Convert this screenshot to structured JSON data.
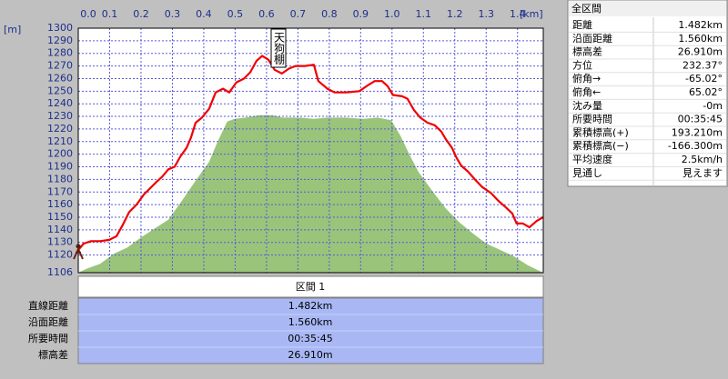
{
  "chart_data": {
    "type": "line",
    "y_label": "[m]",
    "x_label": "[km]",
    "annotation": "天狗棚",
    "xlim": [
      0,
      1.482
    ],
    "ylim": [
      1106,
      1300
    ],
    "xticks": [
      {
        "value": 0,
        "label": "0.0"
      },
      0.1,
      0.2,
      0.3,
      0.4,
      0.5,
      0.6,
      0.7,
      0.8,
      0.9,
      {
        "value": 1,
        "label": "1.0"
      },
      1.1,
      1.2,
      1.3,
      1.4
    ],
    "yticks": [
      1106,
      1120,
      1130,
      1140,
      1150,
      1160,
      1170,
      1180,
      1190,
      1200,
      1210,
      1220,
      1230,
      1240,
      1250,
      1260,
      1270,
      1280,
      1290,
      1300
    ],
    "grid": true,
    "series": [
      {
        "color": "#99c47a",
        "fill": true,
        "x": [
          0,
          0.026,
          0.07,
          0.113,
          0.157,
          0.2,
          0.243,
          0.287,
          0.33,
          0.374,
          0.417,
          0.446,
          0.475,
          0.499,
          0.533,
          0.577,
          0.62,
          0.649,
          0.678,
          0.707,
          0.751,
          0.794,
          0.852,
          0.91,
          0.954,
          0.997,
          1.026,
          1.055,
          1.084,
          1.128,
          1.171,
          1.214,
          1.258,
          1.301,
          1.345,
          1.388,
          1.432,
          1.481
        ],
        "values": [
          1106,
          1109,
          1113,
          1121,
          1126,
          1134,
          1141,
          1148,
          1163,
          1179,
          1194,
          1211,
          1226,
          1228,
          1229,
          1231,
          1231,
          1229,
          1229,
          1229,
          1228,
          1229,
          1229,
          1228,
          1229,
          1227,
          1215,
          1200,
          1186,
          1171,
          1157,
          1146,
          1137,
          1129,
          1124,
          1119,
          1112,
          1106
        ]
      },
      {
        "color": "#f00000",
        "fill": false,
        "x": [
          0,
          0.017,
          0.041,
          0.07,
          0.099,
          0.122,
          0.142,
          0.162,
          0.186,
          0.209,
          0.229,
          0.249,
          0.267,
          0.287,
          0.307,
          0.325,
          0.345,
          0.359,
          0.374,
          0.394,
          0.417,
          0.438,
          0.461,
          0.481,
          0.504,
          0.528,
          0.548,
          0.568,
          0.586,
          0.606,
          0.626,
          0.649,
          0.672,
          0.693,
          0.722,
          0.751,
          0.765,
          0.794,
          0.817,
          0.852,
          0.896,
          0.925,
          0.945,
          0.968,
          0.986,
          1.003,
          1.032,
          1.049,
          1.07,
          1.09,
          1.113,
          1.136,
          1.157,
          1.171,
          1.191,
          1.206,
          1.22,
          1.243,
          1.264,
          1.287,
          1.316,
          1.339,
          1.362,
          1.383,
          1.397,
          1.417,
          1.438,
          1.461,
          1.481
        ],
        "values": [
          1124,
          1129,
          1131,
          1131,
          1132,
          1135,
          1144,
          1154,
          1160,
          1168,
          1173,
          1178,
          1182,
          1188,
          1190,
          1198,
          1205,
          1213,
          1225,
          1229,
          1236,
          1249,
          1252,
          1249,
          1257,
          1260,
          1265,
          1274,
          1278,
          1275,
          1267,
          1264,
          1268,
          1270,
          1270,
          1271,
          1258,
          1252,
          1249,
          1249,
          1250,
          1255,
          1258,
          1258,
          1254,
          1247,
          1246,
          1244,
          1235,
          1229,
          1225,
          1223,
          1218,
          1212,
          1205,
          1197,
          1191,
          1186,
          1180,
          1174,
          1169,
          1163,
          1158,
          1153,
          1145,
          1145,
          1142,
          1147,
          1150
        ]
      }
    ]
  },
  "summary_panel": {
    "title": "全区間",
    "rows": [
      [
        "距離",
        "1.482km"
      ],
      [
        "沿面距離",
        "1.560km"
      ],
      [
        "標高差",
        "26.910m"
      ],
      [
        "方位",
        "232.37°"
      ],
      [
        "俯角→",
        "-65.02°"
      ],
      [
        "俯角←",
        "65.02°"
      ],
      [
        "沈み量",
        "-0m"
      ],
      [
        "所要時間",
        "00:35:45"
      ],
      [
        "累積標高(+)",
        "193.210m"
      ],
      [
        "累積標高(−)",
        "-166.300m"
      ],
      [
        "平均速度",
        "2.5km/h"
      ],
      [
        "見通し",
        "見えます"
      ]
    ]
  },
  "section_table": {
    "header": "区間 1",
    "rows": [
      [
        "直線距離",
        "1.482km"
      ],
      [
        "沿面距離",
        "1.560km"
      ],
      [
        "所要時間",
        "00:35:45"
      ],
      [
        "標高差",
        "26.910m"
      ]
    ]
  }
}
